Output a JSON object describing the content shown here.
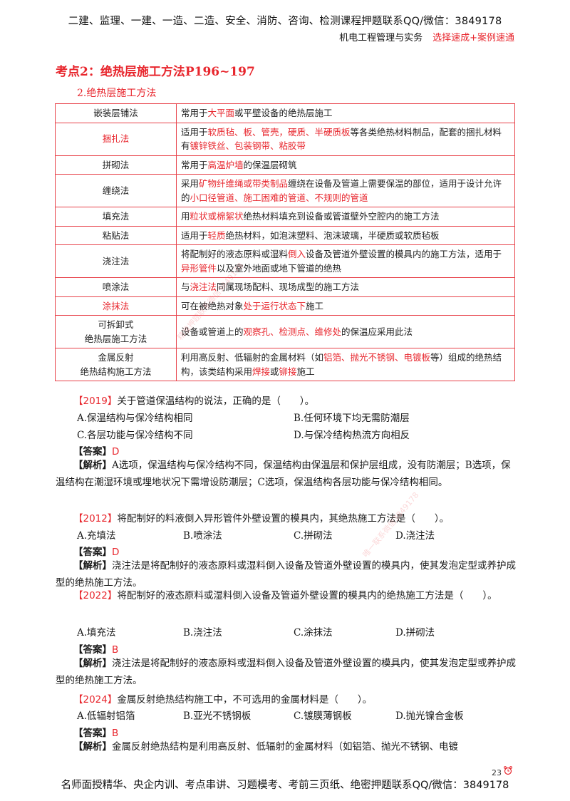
{
  "header": {
    "banner": "二建、监理、一建、一造、二造、安全、消防、咨询、检测课程押题联系QQ/微信：3849178",
    "subject": "机电工程管理与实务",
    "course": "选择速成+案例速通"
  },
  "section": {
    "title": "考点2：绝热层施工方法P196~197",
    "subtitle": "2.绝热层施工方法"
  },
  "table": {
    "rows": [
      {
        "name": "嵌装层铺法",
        "name_red": false,
        "desc": [
          [
            "常用于",
            false
          ],
          [
            "大平面",
            true
          ],
          [
            "或平壁设备的绝热层施工",
            false
          ]
        ]
      },
      {
        "name": "捆扎法",
        "name_red": true,
        "desc": [
          [
            "适用于",
            false
          ],
          [
            "软质毡、板、管壳，硬质、半硬质板",
            true
          ],
          [
            "等各类绝热材料制品，配套的捆扎材料有",
            false
          ],
          [
            "镀锌铁丝、包装钢带、粘胶带",
            true
          ]
        ]
      },
      {
        "name": "拼砌法",
        "name_red": false,
        "desc": [
          [
            "常用于",
            false
          ],
          [
            "高温炉墙",
            true
          ],
          [
            "的保温层砌筑",
            false
          ]
        ]
      },
      {
        "name": "缠绕法",
        "name_red": false,
        "desc": [
          [
            "采用",
            false
          ],
          [
            "矿物纤维绳或带类制品",
            true
          ],
          [
            "缠绕在设备及管道上需要保温的部位，适用于设计允许的",
            false
          ],
          [
            "小口径管道、施工困难的管道、不规则的管道",
            true
          ]
        ]
      },
      {
        "name": "填充法",
        "name_red": false,
        "desc": [
          [
            "用",
            false
          ],
          [
            "粒状或棉絮状",
            true
          ],
          [
            "绝热材料填充到设备或管道壁外空腔内的施工方法",
            false
          ]
        ]
      },
      {
        "name": "粘贴法",
        "name_red": false,
        "desc": [
          [
            "适用于",
            false
          ],
          [
            "轻质",
            true
          ],
          [
            "绝热材料，如泡沫塑料、泡沫玻璃，半硬质或软质毡板",
            false
          ]
        ]
      },
      {
        "name": "浇注法",
        "name_red": false,
        "desc": [
          [
            "将配制好的液态原料或湿料",
            false
          ],
          [
            "倒入",
            true
          ],
          [
            "设备及管道外壁设置的模具内的施工方法，适用于",
            false
          ],
          [
            "异形管件",
            true
          ],
          [
            "以及室外地面或地下管道的绝热",
            false
          ]
        ]
      },
      {
        "name": "喷涂法",
        "name_red": false,
        "desc": [
          [
            "与",
            false
          ],
          [
            "浇注法",
            true
          ],
          [
            "同属现场配料、现场成型的施工方法",
            false
          ]
        ]
      },
      {
        "name": "涂抹法",
        "name_red": true,
        "desc": [
          [
            "可在被绝热对象",
            false
          ],
          [
            "处于运行状态下",
            true
          ],
          [
            "施工",
            false
          ]
        ]
      },
      {
        "name": "可拆卸式\n绝热层施工方法",
        "name_red": false,
        "desc": [
          [
            "设备或管道上的",
            false
          ],
          [
            "观察孔、检测点、维修处",
            true
          ],
          [
            "的保温应采用此法",
            false
          ]
        ]
      },
      {
        "name": "金属反射\n绝热结构施工方法",
        "name_red": false,
        "desc": [
          [
            "利用高反射、低辐射的金属材料（如",
            false
          ],
          [
            "铝箔、抛光不锈钢、电镀板",
            true
          ],
          [
            "等）组成的绝热结构，该类结构采用",
            false
          ],
          [
            "焊接",
            true
          ],
          [
            "或",
            false
          ],
          [
            "铆接",
            true
          ],
          [
            "施工",
            false
          ]
        ]
      }
    ]
  },
  "questions": [
    {
      "year": "【2019】",
      "stem": "关于管道保温结构的说法，正确的是（　　）。",
      "options": [
        "A.保温结构与保冷结构相同",
        "B.任何环境下均无需防潮层",
        "C.各层功能与保冷结构不同",
        "D.与保冷结构热流方向相反"
      ],
      "answer_label": "【答案】",
      "answer": "D",
      "analysis_label": "【解析】",
      "analysis": "A选项，保温结构与保冷结构不同，保温结构由保温层和保护层组成，没有防潮层；B选项，保温结构在潮湿环境或埋地状况下需增设防潮层；C选项，保温结构各层功能与保冷结构相同。"
    },
    {
      "year": "【2012】",
      "stem": "将配制好的料液倒入异形管件外壁设置的模具内，其绝热施工方法是（　　）。",
      "options": [
        "A.充填法",
        "B.喷涂法",
        "C.拼砌法",
        "D.浇注法"
      ],
      "answer_label": "【答案】",
      "answer": "D",
      "analysis_label": "【解析】",
      "analysis": "浇注法是将配制好的液态原料或湿料倒入设备及管道外壁设置的模具内，使其发泡定型或养护成型的绝热施工方法。"
    },
    {
      "year": "【2022】",
      "stem": "将配制好的液态原料或湿料倒入设备及管道外壁设置的模具内的绝热施工方法是（　　）。",
      "options": [
        "A.填充法",
        "B.浇注法",
        "C.涂抹法",
        "D.拼砌法"
      ],
      "answer_label": "【答案】",
      "answer": "B",
      "analysis_label": "【解析】",
      "analysis": "浇注法是将配制好的液态原料或湿料倒入设备及管道外壁设置的模具内，使其发泡定型或养护成型的绝热施工方法。"
    },
    {
      "year": "【2024】",
      "stem": "金属反射绝热结构施工中，不可选用的金属材料是（　　）。",
      "options": [
        "A.低辐射铝箔",
        "B.亚光不锈钢板",
        "C.镀膜薄钢板",
        "D.抛光镍合金板"
      ],
      "answer_label": "【答案】",
      "answer": "B",
      "analysis_label": "【解析】",
      "analysis": "金属反射绝热结构是利用高反射、低辐射的金属材料（如铝箔、抛光不锈钢、电镀"
    }
  ],
  "footer": {
    "text": "名师面授精华、央企内训、考点串讲、习题模考、考前三页纸、绝密押题联系QQ/微信：3849178",
    "page_number": "23"
  },
  "watermarks": [
    "精准押题联系微信3849178",
    "唯一联系微信3849178"
  ],
  "colors": {
    "accent": "#e8262d",
    "table_border": "#e8424a",
    "text": "#1a1a1a"
  }
}
